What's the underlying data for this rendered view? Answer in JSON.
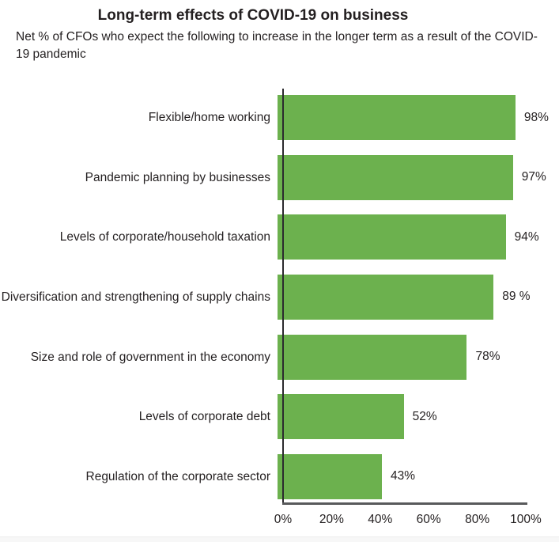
{
  "header": {
    "title": "Long-term effects of COVID-19 on business",
    "subtitle": "Net % of CFOs who expect the following to increase in the longer term as a result of the COVID-19 pandemic"
  },
  "chart_data": {
    "type": "bar",
    "orientation": "horizontal",
    "title": "Long-term effects of COVID-19 on business",
    "subtitle": "Net % of CFOs who expect the following to increase in the longer term as a result of the COVID-19 pandemic",
    "categories": [
      "Flexible/home working",
      "Pandemic planning by businesses",
      "Levels of corporate/household taxation",
      "Diversification and strengthening of supply chains",
      "Size and role of government in the economy",
      "Levels of corporate debt",
      "Regulation of the corporate sector"
    ],
    "values": [
      98,
      97,
      94,
      89,
      78,
      52,
      43
    ],
    "value_labels": [
      "98%",
      "97%",
      "94%",
      "89 %",
      "78%",
      "52%",
      "43%"
    ],
    "xlabel": "",
    "ylabel": "",
    "xlim": [
      0,
      100
    ],
    "x_ticks": [
      "0%",
      "20%",
      "40%",
      "60%",
      "80%",
      "100%"
    ],
    "grid": false,
    "legend": false,
    "bar_color": "#6cb14e",
    "axis_color": "#58595b",
    "text_color": "#231f20"
  }
}
